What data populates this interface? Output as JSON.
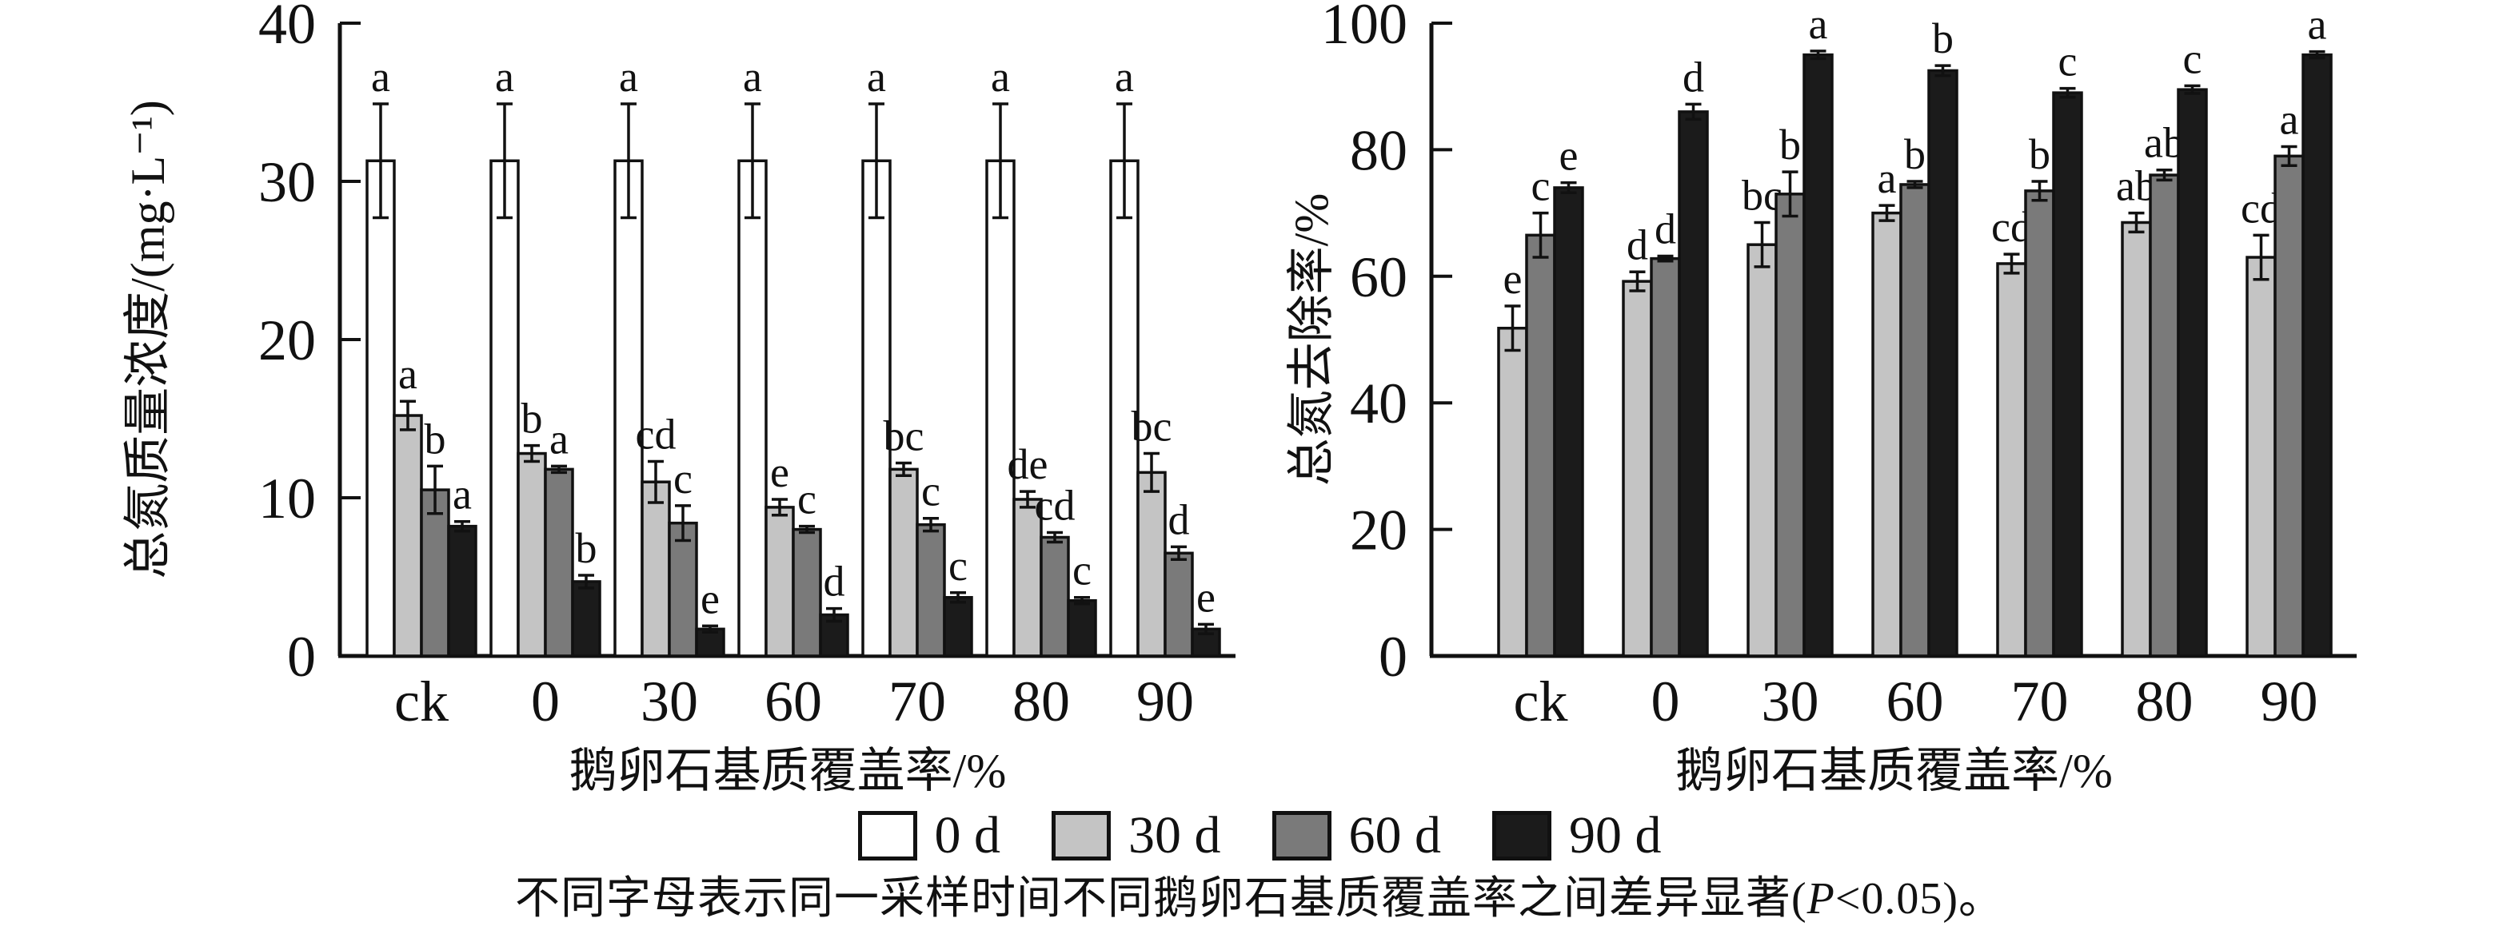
{
  "figure": {
    "legend": [
      {
        "label": "0 d",
        "color": "#ffffff"
      },
      {
        "label": "30 d",
        "color": "#c4c4c4"
      },
      {
        "label": "60 d",
        "color": "#7a7a7a"
      },
      {
        "label": "90 d",
        "color": "#1b1b1b"
      }
    ],
    "caption": {
      "before_p": "不同字母表示同一采样时间不同鹅卵石基质覆盖率之间差异显著(",
      "p": "P",
      "after_p": "<0.05)。"
    }
  },
  "chart_data": [
    {
      "id": "tn-concentration",
      "type": "bar",
      "title": "",
      "ylabel": "总氮质量浓度/(mg·L⁻¹)",
      "xlabel": "鹅卵石基质覆盖率/%",
      "categories": [
        "ck",
        "0",
        "30",
        "60",
        "70",
        "80",
        "90"
      ],
      "ylim": [
        0,
        40
      ],
      "yticks": [
        0,
        10,
        20,
        30,
        40
      ],
      "grid": false,
      "legend_position": "below-figure",
      "series": [
        {
          "name": "0 d",
          "color": "#ffffff",
          "values": [
            31.3,
            31.3,
            31.3,
            31.3,
            31.3,
            31.3,
            31.3
          ],
          "errors": [
            3.6,
            3.6,
            3.6,
            3.6,
            3.6,
            3.6,
            3.6
          ],
          "letters": [
            "a",
            "a",
            "a",
            "a",
            "a",
            "a",
            "a"
          ]
        },
        {
          "name": "30 d",
          "color": "#c4c4c4",
          "values": [
            15.2,
            12.8,
            11.0,
            9.4,
            11.8,
            9.9,
            11.6
          ],
          "errors": [
            0.9,
            0.5,
            1.3,
            0.5,
            0.4,
            0.5,
            1.2
          ],
          "letters": [
            "a",
            "b",
            "cd",
            "e",
            "bc",
            "de",
            "bc"
          ]
        },
        {
          "name": "60 d",
          "color": "#7a7a7a",
          "values": [
            10.5,
            11.8,
            8.4,
            8.0,
            8.3,
            7.5,
            6.5
          ],
          "errors": [
            1.5,
            0.2,
            1.1,
            0.2,
            0.4,
            0.3,
            0.4
          ],
          "letters": [
            "b",
            "a",
            "c",
            "c",
            "c",
            "cd",
            "d"
          ]
        },
        {
          "name": "90 d",
          "color": "#1b1b1b",
          "values": [
            8.2,
            4.7,
            1.7,
            2.6,
            3.7,
            3.5,
            1.7
          ],
          "errors": [
            0.3,
            0.4,
            0.2,
            0.4,
            0.3,
            0.2,
            0.3
          ],
          "letters": [
            "a",
            "b",
            "e",
            "d",
            "c",
            "c",
            "e"
          ]
        }
      ]
    },
    {
      "id": "tn-removal",
      "type": "bar",
      "title": "",
      "ylabel": "总氮去除率/%",
      "xlabel": "鹅卵石基质覆盖率/%",
      "categories": [
        "ck",
        "0",
        "30",
        "60",
        "70",
        "80",
        "90"
      ],
      "ylim": [
        0,
        100
      ],
      "yticks": [
        0,
        20,
        40,
        60,
        80,
        100
      ],
      "grid": false,
      "legend_position": "below-figure",
      "series": [
        {
          "name": "30 d",
          "color": "#c4c4c4",
          "values": [
            51.8,
            59.2,
            65.0,
            70.0,
            62.0,
            68.5,
            63.0
          ],
          "errors": [
            3.5,
            1.5,
            3.5,
            1.2,
            1.5,
            1.5,
            3.5
          ],
          "letters": [
            "e",
            "d",
            "bc",
            "a",
            "cd",
            "ab",
            "cd"
          ]
        },
        {
          "name": "60 d",
          "color": "#7a7a7a",
          "values": [
            66.5,
            62.8,
            73.0,
            74.5,
            73.5,
            76.0,
            79.0
          ],
          "errors": [
            3.5,
            0.4,
            3.5,
            0.5,
            1.5,
            0.8,
            1.5
          ],
          "letters": [
            "c",
            "d",
            "b",
            "b",
            "b",
            "ab",
            "a"
          ]
        },
        {
          "name": "90 d",
          "color": "#1b1b1b",
          "values": [
            74.0,
            86.0,
            95.0,
            92.5,
            89.0,
            89.5,
            95.0
          ],
          "errors": [
            0.8,
            1.2,
            0.6,
            0.8,
            0.7,
            0.6,
            0.5
          ],
          "letters": [
            "e",
            "d",
            "a",
            "b",
            "c",
            "c",
            "a"
          ]
        }
      ]
    }
  ]
}
